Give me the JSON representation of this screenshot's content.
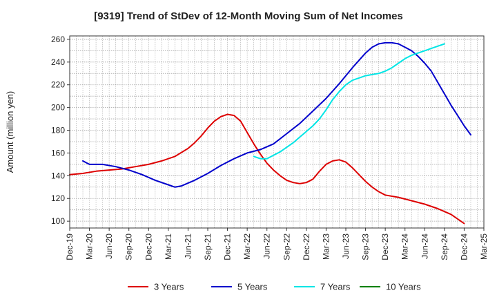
{
  "chart_data": {
    "type": "line",
    "title": "[9319]  Trend of StDev of 12-Month Moving Sum of Net Incomes",
    "ylabel": "Amount (million yen)",
    "xlabel": "",
    "ylim": [
      94,
      263
    ],
    "y_ticks": [
      100,
      120,
      140,
      160,
      180,
      200,
      220,
      240,
      260
    ],
    "x_tick_labels": [
      "Dec-19",
      "Mar-20",
      "Jun-20",
      "Sep-20",
      "Dec-20",
      "Mar-21",
      "Jun-21",
      "Sep-21",
      "Dec-21",
      "Mar-22",
      "Jun-22",
      "Sep-22",
      "Dec-22",
      "Mar-23",
      "Jun-23",
      "Sep-23",
      "Dec-23",
      "Mar-24",
      "Jun-24",
      "Sep-24",
      "Dec-24",
      "Mar-25"
    ],
    "x_range_months": [
      0,
      63
    ],
    "grid": true,
    "legend_position": "bottom",
    "series": [
      {
        "name": "3 Years",
        "color": "#dd0000",
        "points": [
          [
            0,
            141
          ],
          [
            2,
            142
          ],
          [
            4,
            144
          ],
          [
            6,
            145
          ],
          [
            8,
            146
          ],
          [
            10,
            148
          ],
          [
            12,
            150
          ],
          [
            14,
            153
          ],
          [
            16,
            157
          ],
          [
            18,
            164
          ],
          [
            19,
            169
          ],
          [
            20,
            175
          ],
          [
            21,
            182
          ],
          [
            22,
            188
          ],
          [
            23,
            192
          ],
          [
            24,
            194
          ],
          [
            25,
            193
          ],
          [
            26,
            188
          ],
          [
            27,
            178
          ],
          [
            28,
            168
          ],
          [
            29,
            159
          ],
          [
            30,
            151
          ],
          [
            31,
            145
          ],
          [
            32,
            140
          ],
          [
            33,
            136
          ],
          [
            34,
            134
          ],
          [
            35,
            133
          ],
          [
            36,
            134
          ],
          [
            37,
            137
          ],
          [
            38,
            144
          ],
          [
            39,
            150
          ],
          [
            40,
            153
          ],
          [
            41,
            154
          ],
          [
            42,
            152
          ],
          [
            43,
            147
          ],
          [
            44,
            141
          ],
          [
            45,
            135
          ],
          [
            46,
            130
          ],
          [
            47,
            126
          ],
          [
            48,
            123
          ],
          [
            50,
            121
          ],
          [
            52,
            118
          ],
          [
            54,
            115
          ],
          [
            56,
            111
          ],
          [
            58,
            106
          ],
          [
            60,
            98
          ]
        ]
      },
      {
        "name": "5 Years",
        "color": "#0000cc",
        "points": [
          [
            2,
            153
          ],
          [
            3,
            150
          ],
          [
            5,
            150
          ],
          [
            7,
            148
          ],
          [
            9,
            145
          ],
          [
            11,
            141
          ],
          [
            13,
            136
          ],
          [
            15,
            132
          ],
          [
            16,
            130
          ],
          [
            17,
            131
          ],
          [
            19,
            136
          ],
          [
            21,
            142
          ],
          [
            23,
            149
          ],
          [
            25,
            155
          ],
          [
            27,
            160
          ],
          [
            29,
            163
          ],
          [
            31,
            168
          ],
          [
            33,
            177
          ],
          [
            35,
            186
          ],
          [
            37,
            197
          ],
          [
            39,
            208
          ],
          [
            41,
            221
          ],
          [
            43,
            235
          ],
          [
            45,
            248
          ],
          [
            46,
            253
          ],
          [
            47,
            256
          ],
          [
            48,
            257
          ],
          [
            49,
            257
          ],
          [
            50,
            256
          ],
          [
            51,
            253
          ],
          [
            52,
            250
          ],
          [
            53,
            245
          ],
          [
            54,
            239
          ],
          [
            55,
            232
          ],
          [
            56,
            222
          ],
          [
            57,
            212
          ],
          [
            58,
            202
          ],
          [
            59,
            193
          ],
          [
            60,
            184
          ],
          [
            61,
            176
          ]
        ]
      },
      {
        "name": "7 Years",
        "color": "#00e5e5",
        "points": [
          [
            28,
            157
          ],
          [
            29,
            155
          ],
          [
            30,
            155
          ],
          [
            31,
            158
          ],
          [
            32,
            161
          ],
          [
            33,
            165
          ],
          [
            34,
            169
          ],
          [
            35,
            174
          ],
          [
            36,
            179
          ],
          [
            37,
            184
          ],
          [
            38,
            190
          ],
          [
            39,
            198
          ],
          [
            40,
            207
          ],
          [
            41,
            214
          ],
          [
            42,
            220
          ],
          [
            43,
            224
          ],
          [
            44,
            226
          ],
          [
            45,
            228
          ],
          [
            46,
            229
          ],
          [
            47,
            230
          ],
          [
            48,
            232
          ],
          [
            49,
            235
          ],
          [
            50,
            239
          ],
          [
            51,
            243
          ],
          [
            52,
            246
          ],
          [
            53,
            248
          ],
          [
            54,
            250
          ],
          [
            55,
            252
          ],
          [
            56,
            254
          ],
          [
            57,
            256
          ]
        ]
      },
      {
        "name": "10 Years",
        "color": "#008000",
        "points": []
      }
    ]
  }
}
